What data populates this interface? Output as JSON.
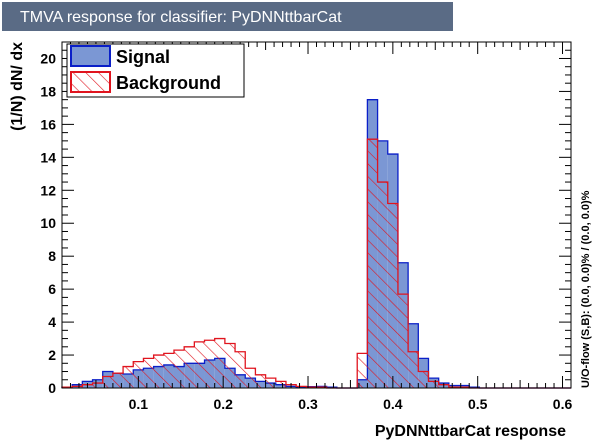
{
  "chart_data": {
    "type": "histogram",
    "title": "TMVA response for classifier: PyDNNttbarCat",
    "xlabel": "PyDNNttbarCat response",
    "ylabel": "(1/N) dN/ dx",
    "side_label": "U/O-flow (S,B): (0.0, 0.0)% / (0.0, 0.0)%",
    "xlim": [
      0.01,
      0.61
    ],
    "ylim": [
      0,
      21
    ],
    "xticks": [
      "0.1",
      "0.2",
      "0.3",
      "0.4",
      "0.5",
      "0.6"
    ],
    "yticks": [
      "0",
      "2",
      "4",
      "6",
      "8",
      "10",
      "12",
      "14",
      "16",
      "18",
      "20"
    ],
    "grid": false,
    "legend_position": "top-left",
    "bin_edges": [
      0.01,
      0.022,
      0.034,
      0.046,
      0.058,
      0.07,
      0.082,
      0.094,
      0.106,
      0.118,
      0.13,
      0.142,
      0.154,
      0.166,
      0.178,
      0.19,
      0.202,
      0.214,
      0.226,
      0.238,
      0.25,
      0.262,
      0.274,
      0.286,
      0.298,
      0.31,
      0.322,
      0.334,
      0.346,
      0.358,
      0.37,
      0.382,
      0.394,
      0.406,
      0.418,
      0.43,
      0.442,
      0.454,
      0.466,
      0.478,
      0.49,
      0.502,
      0.514,
      0.526,
      0.538,
      0.55,
      0.562,
      0.574,
      0.586,
      0.598,
      0.61
    ],
    "series": [
      {
        "name": "Signal",
        "fill": "#7b97d4",
        "line": "#0a1fc8",
        "values": [
          0.05,
          0.2,
          0.4,
          0.5,
          1.0,
          0.9,
          0.85,
          1.1,
          1.2,
          1.3,
          1.4,
          1.3,
          1.5,
          1.5,
          1.7,
          1.8,
          1.2,
          0.8,
          0.6,
          0.4,
          0.3,
          0.2,
          0.1,
          0.05,
          0.08,
          0.1,
          0.05,
          0.0,
          0.0,
          0.5,
          17.5,
          15.0,
          14.2,
          7.6,
          3.9,
          1.8,
          0.6,
          0.3,
          0.15,
          0.15,
          0.05,
          0.0,
          0.0,
          0.0,
          0.0,
          0.0,
          0.0,
          0.0,
          0.0,
          0.0
        ]
      },
      {
        "name": "Background",
        "fill": "none",
        "line": "#e0141e",
        "hatch": "diagonal",
        "values": [
          0.05,
          0.1,
          0.2,
          0.3,
          0.7,
          0.9,
          1.3,
          1.6,
          1.8,
          2.0,
          2.1,
          2.3,
          2.5,
          2.8,
          2.9,
          3.0,
          2.7,
          2.2,
          1.2,
          0.8,
          0.6,
          0.4,
          0.2,
          0.1,
          0.05,
          0.05,
          0.0,
          0.0,
          0.0,
          2.1,
          15.1,
          12.5,
          11.2,
          5.7,
          2.2,
          1.0,
          0.4,
          0.2,
          0.05,
          0.05,
          0.0,
          0.0,
          0.0,
          0.0,
          0.0,
          0.0,
          0.0,
          0.0,
          0.0,
          0.0
        ]
      }
    ]
  },
  "colors": {
    "title_bar": "#5a6b85",
    "title_text": "#ffffff",
    "signal_fill": "#7b97d4",
    "signal_line": "#0a1fc8",
    "background_line": "#e0141e"
  }
}
